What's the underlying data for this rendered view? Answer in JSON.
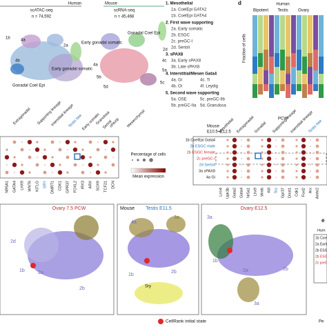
{
  "panel_a": {
    "species_left": "Human",
    "species_right": "Mouse",
    "assay_left": "scATAC-seq",
    "count_left": "n = 74,592",
    "assay_right": "scRNA-seq",
    "count_right": "n = 45,468",
    "labels_left": [
      "1b",
      "4a",
      "2a",
      "4b",
      "Gonadal Coel Epi",
      "Early gonadal somatic"
    ],
    "labels_right": [
      "Early gonadal somatic",
      "Gonadal Coel Epi",
      "4a",
      "2d",
      "4c",
      "5a",
      "5b",
      "5c",
      "5d"
    ]
  },
  "legend": [
    "1. Mesothelial",
    "1a. CoelEpi GATA2",
    "1b. CoelEpi GATA4",
    "2. First wave supporting",
    "2a. Early somatic",
    "2b. ESGC",
    "2c. preGC-I",
    "2d. Sertoli",
    "3. sPAX8",
    "3a. Early sPAX8",
    "3b. Late sPAX8",
    "4. Interstitial/Mesen Gata4",
    "4a. Gi",
    "4c. Ti",
    "4b. Oi",
    "4f. Leydig",
    "5. Second wave supporting",
    "5a. OSE",
    "5c. preGC-IIb",
    "5b. preGC-IIa",
    "5d. Granulosa"
  ],
  "panel_d": {
    "letter": "d",
    "species": "Human",
    "groups": [
      "Bipotent",
      "Testis",
      "Ovary"
    ],
    "y_label": "Fraction of cells",
    "x_label": "PCW"
  },
  "dotplot_human": {
    "headers": [
      "Extragonadal",
      "Supporting lineage",
      "Interstitial lineage",
      "Testis fate",
      "Early somatic",
      "Granulosa",
      "Sertoli",
      "sPAX8",
      "Mesenchymal"
    ],
    "genes": [
      "NR5A1",
      "GATA4",
      "LHX9",
      "WNT6",
      "KITLG",
      "SRY",
      "DMRT1",
      "CDK1",
      "GPR37",
      "FOXL2",
      "IRX3",
      "ARX",
      "SOX9",
      "TCF21",
      "DCN"
    ]
  },
  "dotplot_key": {
    "size_title": "Percentage of cells",
    "color_title": "Mean expression"
  },
  "dotplot_mouse": {
    "title": "Mouse",
    "stages": "E10.5–E12.5",
    "rows": [
      "1b CoelEpi Gata4",
      "2b ESGC male",
      "2b ESGC female",
      "2c preGC-I",
      "2d Sertoli",
      "3a sPAX8",
      "4a Gi"
    ],
    "headers": [
      "Mesothelial",
      "Extragonadal",
      "Gonadal",
      "Supporting lineage",
      "Interstitial lineage",
      "Testis fate"
    ],
    "genes": [
      "Lrrn4",
      "Upk3b",
      "Gata2",
      "Gata4",
      "Nr5a1",
      "Lhx9",
      "Wnt6",
      "Kitl",
      "Sry",
      "Gpr37",
      "Dmrt1",
      "Cdk1",
      "Foxl2",
      "Arx",
      "Amhr2"
    ]
  },
  "panel_b": {
    "ovary_human": "Ovary 7.5 PCW",
    "species": "Mouse",
    "testis_mouse": "Testis E11.5",
    "ovary_mouse": "Ovary E12.5",
    "inset": "Sry",
    "labels_left": [
      "2d",
      "1b",
      "2a",
      "2b"
    ],
    "labels_testis": [
      "4a",
      "3a",
      "1b",
      "2b"
    ],
    "labels_ovary": [
      "3a",
      "1b",
      "2a",
      "2b",
      "3a"
    ],
    "legend": "CellRank initial state"
  },
  "panel_e": {
    "letter": "e",
    "species": "Hum",
    "rows": [
      "1b CoelEp",
      "2a Early",
      "2b ESG",
      "2b ESG",
      "2c preG"
    ],
    "footer": "Pe"
  }
}
